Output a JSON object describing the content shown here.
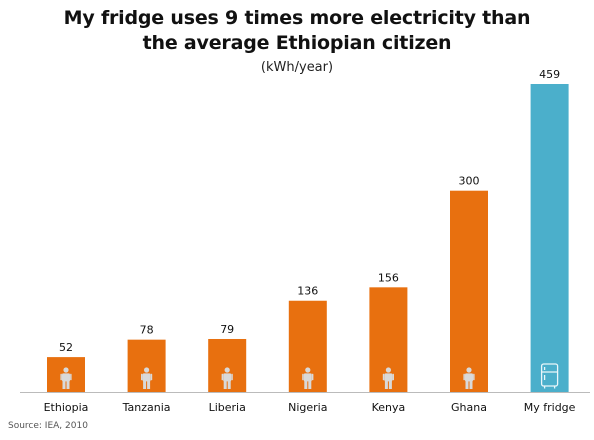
{
  "chart_data": {
    "type": "bar",
    "title_lines": [
      "My fridge uses 9 times more electricity than",
      "the average Ethiopian citizen"
    ],
    "subtitle": "(kWh/year)",
    "categories": [
      "Ethiopia",
      "Tanzania",
      "Liberia",
      "Nigeria",
      "Kenya",
      "Ghana",
      "My fridge"
    ],
    "values": [
      52,
      78,
      79,
      136,
      156,
      300,
      459
    ],
    "data_labels": [
      "52",
      "78",
      "79",
      "136",
      "156",
      "300",
      "459"
    ],
    "icons": [
      "person-icon",
      "person-icon",
      "person-icon",
      "person-icon",
      "person-icon",
      "person-icon",
      "fridge-icon"
    ],
    "bar_colors": [
      "#E8700F",
      "#E8700F",
      "#E8700F",
      "#E8700F",
      "#E8700F",
      "#E8700F",
      "#4BAFCB"
    ],
    "ylim": [
      0,
      459
    ],
    "grid": false,
    "source": "Source: IEA, 2010"
  }
}
